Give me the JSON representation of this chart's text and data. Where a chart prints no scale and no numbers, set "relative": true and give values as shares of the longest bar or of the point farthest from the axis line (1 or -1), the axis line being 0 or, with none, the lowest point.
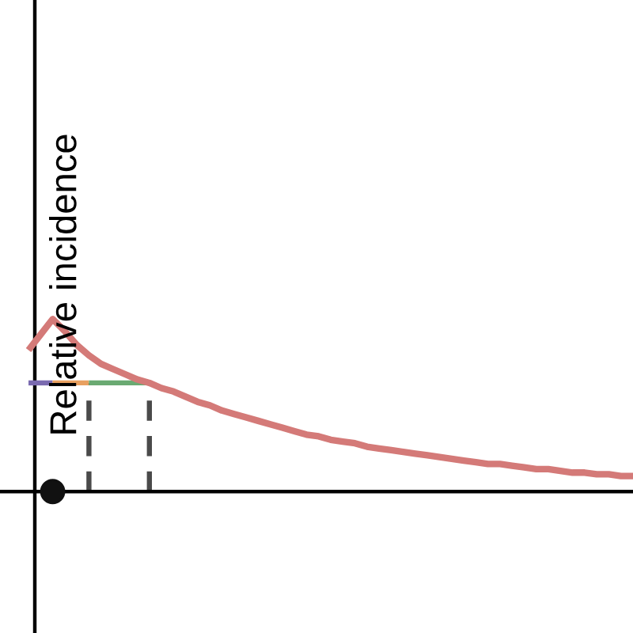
{
  "chart_data": {
    "type": "line",
    "relative": true,
    "ylabel": "Relative incidence",
    "categories": [
      null,
      null,
      null,
      null,
      null,
      null,
      null,
      null,
      null,
      null,
      null,
      null,
      null,
      null,
      null,
      null,
      null,
      null,
      null,
      null,
      null,
      null,
      null,
      null,
      null,
      null,
      null,
      null,
      null,
      null,
      null,
      null,
      null,
      null,
      null,
      null,
      null,
      null,
      null,
      null,
      null,
      null,
      null,
      null,
      null,
      null,
      null,
      null,
      null,
      null,
      null
    ],
    "series": [
      {
        "color": "#d47a78",
        "values": [
          0.82,
          0.91,
          1.0,
          0.93,
          0.85,
          0.79,
          0.74,
          0.71,
          0.68,
          0.65,
          0.63,
          0.6,
          0.58,
          0.55,
          0.52,
          0.5,
          0.47,
          0.45,
          0.43,
          0.41,
          0.39,
          0.37,
          0.35,
          0.33,
          0.32,
          0.3,
          0.29,
          0.28,
          0.26,
          0.25,
          0.24,
          0.23,
          0.22,
          0.21,
          0.2,
          0.19,
          0.18,
          0.17,
          0.16,
          0.16,
          0.15,
          0.14,
          0.13,
          0.13,
          0.12,
          0.11,
          0.11,
          0.1,
          0.1,
          0.09,
          0.09
        ]
      },
      {
        "color": "#7a6ab0",
        "values": [
          0.63,
          0.63,
          0.63,
          null,
          null,
          null,
          null,
          null,
          null,
          null,
          null,
          null,
          null,
          null,
          null,
          null,
          null,
          null,
          null,
          null,
          null,
          null,
          null,
          null,
          null,
          null,
          null,
          null,
          null,
          null,
          null,
          null,
          null,
          null,
          null,
          null,
          null,
          null,
          null,
          null,
          null,
          null,
          null,
          null,
          null,
          null,
          null,
          null,
          null,
          null,
          null
        ]
      },
      {
        "color": "#e8a060",
        "values": [
          null,
          null,
          0.63,
          0.63,
          0.63,
          0.63,
          null,
          null,
          null,
          null,
          null,
          null,
          null,
          null,
          null,
          null,
          null,
          null,
          null,
          null,
          null,
          null,
          null,
          null,
          null,
          null,
          null,
          null,
          null,
          null,
          null,
          null,
          null,
          null,
          null,
          null,
          null,
          null,
          null,
          null,
          null,
          null,
          null,
          null,
          null,
          null,
          null,
          null,
          null,
          null,
          null
        ]
      },
      {
        "color": "#6aaa72",
        "values": [
          null,
          null,
          null,
          null,
          null,
          0.63,
          0.63,
          0.63,
          0.63,
          0.63,
          0.63,
          null,
          null,
          null,
          null,
          null,
          null,
          null,
          null,
          null,
          null,
          null,
          null,
          null,
          null,
          null,
          null,
          null,
          null,
          null,
          null,
          null,
          null,
          null,
          null,
          null,
          null,
          null,
          null,
          null,
          null,
          null,
          null,
          null,
          null,
          null,
          null,
          null,
          null,
          null,
          null
        ]
      }
    ]
  }
}
